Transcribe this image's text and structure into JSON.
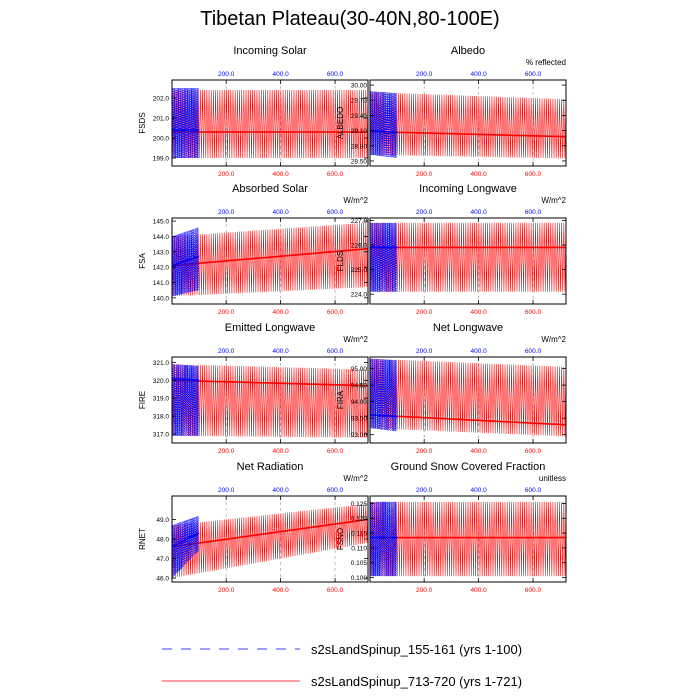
{
  "page_title": "Tibetan Plateau(30-40N,80-100E)",
  "colors": {
    "series_a": "#0000ff",
    "series_b": "#ff0000",
    "top_axis_tick": "#0000ff",
    "bottom_axis_tick": "#ff0000",
    "grid": "#999999"
  },
  "legend": [
    {
      "label": "s2sLandSpinup_155-161 (yrs 1-100)",
      "color": "#0000ff",
      "dash": true
    },
    {
      "label": "s2sLandSpinup_713-720 (yrs 1-721)",
      "color": "#ff0000",
      "dash": false
    }
  ],
  "chart_data": [
    {
      "type": "line",
      "title": "Incoming Solar",
      "ylabel": "FSDS",
      "units": "",
      "xlim": [
        1,
        721
      ],
      "top_ticks": [
        "200.0",
        "400.0",
        "600.0"
      ],
      "bottom_ticks": [
        "200.0",
        "400.0",
        "600.0"
      ],
      "ylim": [
        198.6,
        202.9
      ],
      "yticks": [
        "199.0",
        "200.0",
        "201.0",
        "202.0"
      ],
      "ytick_values": [
        199.0,
        200.0,
        201.0,
        202.0
      ],
      "series": [
        {
          "name": "s2sLandSpinup_155-161 (yrs 1-100)",
          "x_range": [
            1,
            100
          ],
          "low": [
            199.0,
            199.0
          ],
          "high": [
            202.5,
            202.5
          ],
          "mean": [
            200.4,
            200.4
          ]
        },
        {
          "name": "s2sLandSpinup_713-720 (yrs 1-721)",
          "x_range": [
            1,
            721
          ],
          "low": [
            199.0,
            199.0
          ],
          "high": [
            202.4,
            202.4
          ],
          "mean": [
            200.3,
            200.3
          ]
        }
      ]
    },
    {
      "type": "line",
      "title": "Albedo",
      "ylabel": "ALBEDO",
      "units": "% reflected",
      "xlim": [
        1,
        721
      ],
      "top_ticks": [
        "200.0",
        "400.0",
        "600.0"
      ],
      "bottom_ticks": [
        "200.0",
        "400.0",
        "600.0"
      ],
      "ylim": [
        28.4,
        30.1
      ],
      "yticks": [
        "28.50",
        "28.80",
        "29.10",
        "29.40",
        "29.70",
        "30.00"
      ],
      "ytick_values": [
        28.5,
        28.8,
        29.1,
        29.4,
        29.7,
        30.0
      ],
      "series": [
        {
          "name": "s2sLandSpinup_155-161 (yrs 1-100)",
          "x_range": [
            1,
            100
          ],
          "low": [
            28.62,
            28.56
          ],
          "high": [
            29.88,
            29.84
          ],
          "mean": [
            29.1,
            29.06
          ]
        },
        {
          "name": "s2sLandSpinup_713-720 (yrs 1-721)",
          "x_range": [
            1,
            721
          ],
          "low": [
            28.62,
            28.55
          ],
          "high": [
            29.86,
            29.72
          ],
          "mean": [
            29.08,
            28.98
          ]
        }
      ]
    },
    {
      "type": "line",
      "title": "Absorbed Solar",
      "ylabel": "FSA",
      "units": "W/m^2",
      "xlim": [
        1,
        721
      ],
      "top_ticks": [
        "200.0",
        "400.0",
        "600.0"
      ],
      "bottom_ticks": [
        "200.0",
        "400.0",
        "600.0"
      ],
      "ylim": [
        139.6,
        145.2
      ],
      "yticks": [
        "140.0",
        "141.0",
        "142.0",
        "143.0",
        "144.0",
        "145.0"
      ],
      "ytick_values": [
        140,
        141,
        142,
        143,
        144,
        145
      ],
      "series": [
        {
          "name": "s2sLandSpinup_155-161 (yrs 1-100)",
          "x_range": [
            1,
            100
          ],
          "low": [
            140.1,
            140.5
          ],
          "high": [
            144.0,
            144.6
          ],
          "mean": [
            142.1,
            142.7
          ]
        },
        {
          "name": "s2sLandSpinup_713-720 (yrs 1-721)",
          "x_range": [
            1,
            721
          ],
          "low": [
            140.1,
            140.7
          ],
          "high": [
            144.0,
            144.9
          ],
          "mean": [
            142.1,
            143.2
          ]
        }
      ]
    },
    {
      "type": "line",
      "title": "Incoming Longwave",
      "ylabel": "FLDS",
      "units": "W/m^2",
      "xlim": [
        1,
        721
      ],
      "top_ticks": [
        "200.0",
        "400.0",
        "600.0"
      ],
      "bottom_ticks": [
        "200.0",
        "400.0",
        "600.0"
      ],
      "ylim": [
        223.6,
        227.1
      ],
      "yticks": [
        "224.0",
        "225.0",
        "226.0",
        "227.0"
      ],
      "ytick_values": [
        224,
        225,
        226,
        227
      ],
      "series": [
        {
          "name": "s2sLandSpinup_155-161 (yrs 1-100)",
          "x_range": [
            1,
            100
          ],
          "low": [
            224.1,
            224.1
          ],
          "high": [
            226.9,
            226.9
          ],
          "mean": [
            225.9,
            225.9
          ]
        },
        {
          "name": "s2sLandSpinup_713-720 (yrs 1-721)",
          "x_range": [
            1,
            721
          ],
          "low": [
            224.1,
            224.1
          ],
          "high": [
            226.9,
            226.9
          ],
          "mean": [
            225.9,
            225.9
          ]
        }
      ]
    },
    {
      "type": "line",
      "title": "Emitted Longwave",
      "ylabel": "FIRE",
      "units": "W/m^2",
      "xlim": [
        1,
        721
      ],
      "top_ticks": [
        "200.0",
        "400.0",
        "600.0"
      ],
      "bottom_ticks": [
        "200.0",
        "400.0",
        "600.0"
      ],
      "ylim": [
        316.5,
        321.3
      ],
      "yticks": [
        "317.0",
        "318.0",
        "319.0",
        "320.0",
        "321.0"
      ],
      "ytick_values": [
        317,
        318,
        319,
        320,
        321
      ],
      "series": [
        {
          "name": "s2sLandSpinup_155-161 (yrs 1-100)",
          "x_range": [
            1,
            100
          ],
          "low": [
            316.9,
            316.9
          ],
          "high": [
            320.9,
            320.8
          ],
          "mean": [
            320.1,
            320.0
          ]
        },
        {
          "name": "s2sLandSpinup_713-720 (yrs 1-721)",
          "x_range": [
            1,
            721
          ],
          "low": [
            316.9,
            316.8
          ],
          "high": [
            320.9,
            320.6
          ],
          "mean": [
            320.0,
            319.7
          ]
        }
      ]
    },
    {
      "type": "line",
      "title": "Net Longwave",
      "ylabel": "FIRA",
      "units": "W/m^2",
      "xlim": [
        1,
        721
      ],
      "top_ticks": [
        "200.0",
        "400.0",
        "600.0"
      ],
      "bottom_ticks": [
        "200.0",
        "400.0",
        "600.0"
      ],
      "ylim": [
        92.75,
        95.35
      ],
      "yticks": [
        "93.00",
        "93.50",
        "94.00",
        "94.50",
        "95.00"
      ],
      "ytick_values": [
        93.0,
        93.5,
        94.0,
        94.5,
        95.0
      ],
      "series": [
        {
          "name": "s2sLandSpinup_155-161 (yrs 1-100)",
          "x_range": [
            1,
            100
          ],
          "low": [
            93.2,
            93.1
          ],
          "high": [
            95.3,
            95.25
          ],
          "mean": [
            93.6,
            93.55
          ]
        },
        {
          "name": "s2sLandSpinup_713-720 (yrs 1-721)",
          "x_range": [
            1,
            721
          ],
          "low": [
            93.2,
            92.95
          ],
          "high": [
            95.3,
            95.05
          ],
          "mean": [
            93.6,
            93.3
          ]
        }
      ]
    },
    {
      "type": "line",
      "title": "Net Radiation",
      "ylabel": "RNET",
      "units": "W/m^2",
      "xlim": [
        1,
        721
      ],
      "top_ticks": [
        "200.0",
        "400.0",
        "600.0"
      ],
      "bottom_ticks": [
        "200.0",
        "400.0",
        "600.0"
      ],
      "ylim": [
        45.8,
        50.2
      ],
      "yticks": [
        "46.0",
        "47.0",
        "48.0",
        "49.0"
      ],
      "ytick_values": [
        46,
        47,
        48,
        49
      ],
      "series": [
        {
          "name": "s2sLandSpinup_155-161 (yrs 1-100)",
          "x_range": [
            1,
            100
          ],
          "low": [
            46.0,
            47.4
          ],
          "high": [
            48.7,
            49.2
          ],
          "mean": [
            47.6,
            48.3
          ]
        },
        {
          "name": "s2sLandSpinup_713-720 (yrs 1-721)",
          "x_range": [
            1,
            721
          ],
          "low": [
            46.0,
            47.8
          ],
          "high": [
            48.7,
            49.8
          ],
          "mean": [
            47.6,
            49.0
          ]
        }
      ]
    },
    {
      "type": "line",
      "title": "Ground Snow Covered Fraction",
      "ylabel": "FSNO",
      "units": "unitless",
      "xlim": [
        1,
        721
      ],
      "top_ticks": [
        "200.0",
        "400.0",
        "600.0"
      ],
      "bottom_ticks": [
        "200.0",
        "400.0",
        "600.0"
      ],
      "ylim": [
        0.0985,
        0.1275
      ],
      "yticks": [
        "0.100",
        "0.105",
        "0.110",
        "0.115",
        "0.120",
        "0.125"
      ],
      "ytick_values": [
        0.1,
        0.105,
        0.11,
        0.115,
        0.12,
        0.125
      ],
      "series": [
        {
          "name": "s2sLandSpinup_155-161 (yrs 1-100)",
          "x_range": [
            1,
            100
          ],
          "low": [
            0.1005,
            0.1005
          ],
          "high": [
            0.1255,
            0.1255
          ],
          "mean": [
            0.1135,
            0.1135
          ]
        },
        {
          "name": "s2sLandSpinup_713-720 (yrs 1-721)",
          "x_range": [
            1,
            721
          ],
          "low": [
            0.1005,
            0.1005
          ],
          "high": [
            0.1255,
            0.1255
          ],
          "mean": [
            0.1135,
            0.1135
          ]
        }
      ]
    }
  ]
}
